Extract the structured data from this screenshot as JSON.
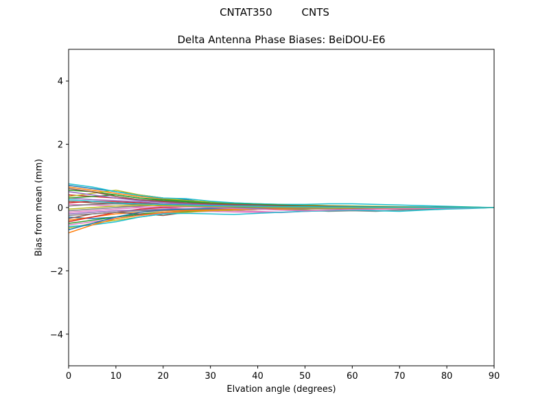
{
  "suptitle": "CNTAT350         CNTS",
  "chart_data": {
    "type": "line",
    "title": "Delta Antenna Phase Biases: BeiDOU-E6",
    "xlabel": "Elvation angle (degrees)",
    "ylabel": "Bias from mean (mm)",
    "xlim": [
      0,
      90
    ],
    "ylim": [
      -5,
      5
    ],
    "xticks": [
      0,
      10,
      20,
      30,
      40,
      50,
      60,
      70,
      80,
      90
    ],
    "yticks": [
      -4,
      -2,
      0,
      2,
      4
    ],
    "grid": false,
    "legend": "none",
    "x": [
      0,
      5,
      10,
      15,
      20,
      25,
      30,
      35,
      40,
      45,
      50,
      55,
      60,
      65,
      70,
      75,
      80,
      85,
      90
    ],
    "series": [
      {
        "color": "#1f77b4",
        "values": [
          0.7,
          0.6,
          0.5,
          0.4,
          0.3,
          0.25,
          0.15,
          0.12,
          0.1,
          0.08,
          0.06,
          0.05,
          0.04,
          0.03,
          0.02,
          0.02,
          0.01,
          0.01,
          0.0
        ]
      },
      {
        "color": "#ff7f0e",
        "values": [
          0.65,
          0.55,
          0.45,
          0.35,
          0.28,
          0.2,
          0.15,
          0.1,
          0.08,
          0.06,
          0.05,
          0.04,
          0.03,
          0.02,
          0.02,
          0.01,
          0.01,
          0.0,
          0.0
        ]
      },
      {
        "color": "#2ca02c",
        "values": [
          0.55,
          0.5,
          0.4,
          0.3,
          0.22,
          0.18,
          0.12,
          0.1,
          0.07,
          0.05,
          0.04,
          0.03,
          0.03,
          0.02,
          0.01,
          0.01,
          0.01,
          0.0,
          0.0
        ]
      },
      {
        "color": "#d62728",
        "values": [
          0.4,
          0.35,
          0.3,
          0.25,
          0.18,
          0.12,
          0.1,
          0.08,
          0.05,
          0.04,
          0.03,
          0.02,
          0.02,
          0.01,
          0.01,
          0.01,
          0.0,
          0.0,
          0.0
        ]
      },
      {
        "color": "#9467bd",
        "values": [
          0.3,
          0.25,
          0.22,
          0.18,
          0.12,
          0.1,
          0.08,
          0.05,
          0.04,
          0.03,
          0.02,
          0.02,
          0.01,
          0.01,
          0.01,
          0.0,
          0.0,
          0.0,
          0.0
        ]
      },
      {
        "color": "#8c564b",
        "values": [
          0.2,
          0.15,
          0.12,
          0.1,
          0.05,
          0.03,
          0.02,
          -0.02,
          -0.03,
          -0.03,
          -0.04,
          -0.04,
          -0.03,
          -0.02,
          -0.02,
          -0.01,
          -0.01,
          0.0,
          0.0
        ]
      },
      {
        "color": "#e377c2",
        "values": [
          0.1,
          0.08,
          0.05,
          0.02,
          0.0,
          -0.05,
          -0.08,
          -0.1,
          -0.12,
          -0.15,
          -0.12,
          -0.1,
          -0.08,
          -0.06,
          -0.05,
          -0.04,
          -0.03,
          -0.02,
          0.0
        ]
      },
      {
        "color": "#7f7f7f",
        "values": [
          -0.1,
          -0.05,
          0.0,
          0.05,
          0.08,
          0.05,
          0.02,
          0.0,
          -0.03,
          -0.05,
          -0.08,
          -0.1,
          -0.08,
          -0.06,
          -0.05,
          -0.04,
          -0.03,
          -0.02,
          0.0
        ]
      },
      {
        "color": "#bcbd22",
        "values": [
          0.35,
          0.45,
          0.55,
          0.4,
          0.3,
          0.22,
          0.18,
          0.15,
          0.12,
          0.1,
          0.08,
          0.06,
          0.05,
          0.04,
          0.03,
          0.02,
          0.02,
          0.01,
          0.0
        ]
      },
      {
        "color": "#17becf",
        "values": [
          0.75,
          0.65,
          0.5,
          0.38,
          0.3,
          0.28,
          0.2,
          0.15,
          0.12,
          0.1,
          0.1,
          0.12,
          0.12,
          0.1,
          0.08,
          0.06,
          0.04,
          0.02,
          0.0
        ]
      },
      {
        "color": "#1f77b4",
        "values": [
          -0.3,
          -0.35,
          -0.3,
          -0.22,
          -0.15,
          -0.12,
          -0.1,
          -0.08,
          -0.06,
          -0.05,
          -0.04,
          -0.03,
          -0.03,
          -0.02,
          -0.02,
          -0.01,
          -0.01,
          0.0,
          0.0
        ]
      },
      {
        "color": "#ff7f0e",
        "values": [
          -0.4,
          -0.3,
          -0.2,
          -0.15,
          -0.1,
          -0.08,
          -0.06,
          -0.05,
          -0.04,
          -0.03,
          -0.03,
          -0.02,
          -0.02,
          -0.01,
          -0.01,
          -0.01,
          0.0,
          0.0,
          0.0
        ]
      },
      {
        "color": "#2ca02c",
        "values": [
          -0.5,
          -0.4,
          -0.3,
          -0.2,
          -0.15,
          -0.12,
          -0.1,
          -0.08,
          -0.05,
          -0.04,
          -0.03,
          -0.02,
          -0.02,
          -0.01,
          -0.01,
          0.0,
          0.0,
          0.0,
          0.0
        ]
      },
      {
        "color": "#d62728",
        "values": [
          -0.45,
          -0.3,
          -0.15,
          -0.05,
          0.0,
          0.02,
          0.03,
          0.02,
          0.01,
          0.0,
          0.0,
          -0.01,
          -0.01,
          0.0,
          0.0,
          0.0,
          0.0,
          0.0,
          0.0
        ]
      },
      {
        "color": "#9467bd",
        "values": [
          -0.2,
          -0.15,
          -0.1,
          -0.08,
          -0.05,
          -0.04,
          -0.03,
          -0.02,
          -0.02,
          -0.01,
          -0.01,
          -0.01,
          0.0,
          0.0,
          0.0,
          0.0,
          0.0,
          0.0,
          0.0
        ]
      },
      {
        "color": "#8c564b",
        "values": [
          -0.35,
          -0.2,
          -0.15,
          -0.2,
          -0.25,
          -0.15,
          -0.1,
          -0.08,
          -0.06,
          -0.05,
          -0.04,
          -0.03,
          -0.02,
          -0.02,
          -0.01,
          -0.01,
          0.0,
          0.0,
          0.0
        ]
      },
      {
        "color": "#e377c2",
        "values": [
          -0.55,
          -0.45,
          -0.35,
          -0.25,
          -0.18,
          -0.15,
          -0.12,
          -0.14,
          -0.15,
          -0.16,
          -0.12,
          -0.1,
          -0.08,
          -0.06,
          -0.04,
          -0.03,
          -0.02,
          -0.01,
          0.0
        ]
      },
      {
        "color": "#7f7f7f",
        "values": [
          -0.25,
          -0.2,
          -0.15,
          -0.1,
          -0.08,
          -0.06,
          -0.05,
          -0.04,
          -0.03,
          -0.05,
          -0.08,
          -0.12,
          -0.1,
          -0.12,
          -0.08,
          -0.06,
          -0.04,
          -0.02,
          0.0
        ]
      },
      {
        "color": "#bcbd22",
        "values": [
          -0.65,
          -0.5,
          -0.4,
          -0.3,
          -0.2,
          -0.15,
          -0.1,
          -0.08,
          -0.06,
          -0.05,
          -0.04,
          -0.03,
          -0.02,
          -0.02,
          -0.01,
          -0.01,
          0.0,
          0.0,
          0.0
        ]
      },
      {
        "color": "#17becf",
        "values": [
          -0.6,
          -0.55,
          -0.45,
          -0.3,
          -0.2,
          -0.18,
          -0.2,
          -0.22,
          -0.18,
          -0.15,
          -0.12,
          -0.1,
          -0.08,
          -0.1,
          -0.12,
          -0.08,
          -0.05,
          -0.03,
          0.0
        ]
      },
      {
        "color": "#1f77b4",
        "values": [
          -0.7,
          -0.5,
          -0.3,
          -0.15,
          -0.08,
          -0.05,
          -0.03,
          -0.02,
          -0.01,
          -0.01,
          0.0,
          0.0,
          0.0,
          0.0,
          0.0,
          0.0,
          0.0,
          0.0,
          0.0
        ]
      },
      {
        "color": "#ff7f0e",
        "values": [
          -0.8,
          -0.55,
          -0.35,
          -0.25,
          -0.15,
          -0.1,
          -0.08,
          -0.06,
          -0.05,
          -0.04,
          -0.03,
          -0.02,
          -0.02,
          -0.01,
          -0.01,
          0.0,
          0.0,
          0.0,
          0.0
        ]
      },
      {
        "color": "#2ca02c",
        "values": [
          0.3,
          0.35,
          0.4,
          0.3,
          0.25,
          0.2,
          0.15,
          0.12,
          0.1,
          0.08,
          0.06,
          0.05,
          0.04,
          0.03,
          0.02,
          0.02,
          0.01,
          0.01,
          0.0
        ]
      },
      {
        "color": "#d62728",
        "values": [
          0.15,
          0.2,
          0.18,
          0.15,
          0.1,
          0.08,
          0.06,
          0.05,
          0.04,
          0.03,
          0.03,
          0.02,
          0.02,
          0.01,
          0.01,
          0.01,
          0.0,
          0.0,
          0.0
        ]
      },
      {
        "color": "#9467bd",
        "values": [
          0.5,
          0.4,
          0.3,
          0.22,
          0.16,
          0.12,
          0.08,
          0.06,
          0.05,
          0.04,
          0.03,
          0.02,
          0.02,
          0.01,
          0.01,
          0.01,
          0.0,
          0.0,
          0.0
        ]
      },
      {
        "color": "#8c564b",
        "values": [
          0.6,
          0.5,
          0.35,
          0.25,
          0.2,
          0.15,
          0.12,
          0.1,
          0.08,
          0.06,
          0.05,
          0.04,
          0.03,
          0.02,
          0.02,
          0.01,
          0.01,
          0.0,
          0.0
        ]
      },
      {
        "color": "#e377c2",
        "values": [
          -0.15,
          -0.1,
          -0.05,
          0.0,
          0.03,
          0.02,
          0.0,
          -0.03,
          -0.05,
          -0.08,
          -0.1,
          -0.08,
          -0.06,
          -0.05,
          -0.04,
          -0.03,
          -0.02,
          -0.01,
          0.0
        ]
      },
      {
        "color": "#7f7f7f",
        "values": [
          0.05,
          0.1,
          0.12,
          0.1,
          0.06,
          0.04,
          0.02,
          0.01,
          0.0,
          -0.01,
          -0.02,
          -0.02,
          -0.01,
          -0.01,
          0.0,
          0.0,
          0.0,
          0.0,
          0.0
        ]
      },
      {
        "color": "#bcbd22",
        "values": [
          -0.05,
          0.0,
          0.05,
          0.08,
          0.06,
          0.05,
          0.04,
          0.03,
          0.02,
          0.01,
          0.01,
          0.0,
          0.0,
          0.0,
          0.0,
          0.0,
          0.0,
          0.0,
          0.0
        ]
      },
      {
        "color": "#17becf",
        "values": [
          0.25,
          0.2,
          0.15,
          0.12,
          0.1,
          0.08,
          0.06,
          0.05,
          0.04,
          0.03,
          0.03,
          0.02,
          0.02,
          0.01,
          0.01,
          0.01,
          0.0,
          0.0,
          0.0
        ]
      }
    ]
  }
}
